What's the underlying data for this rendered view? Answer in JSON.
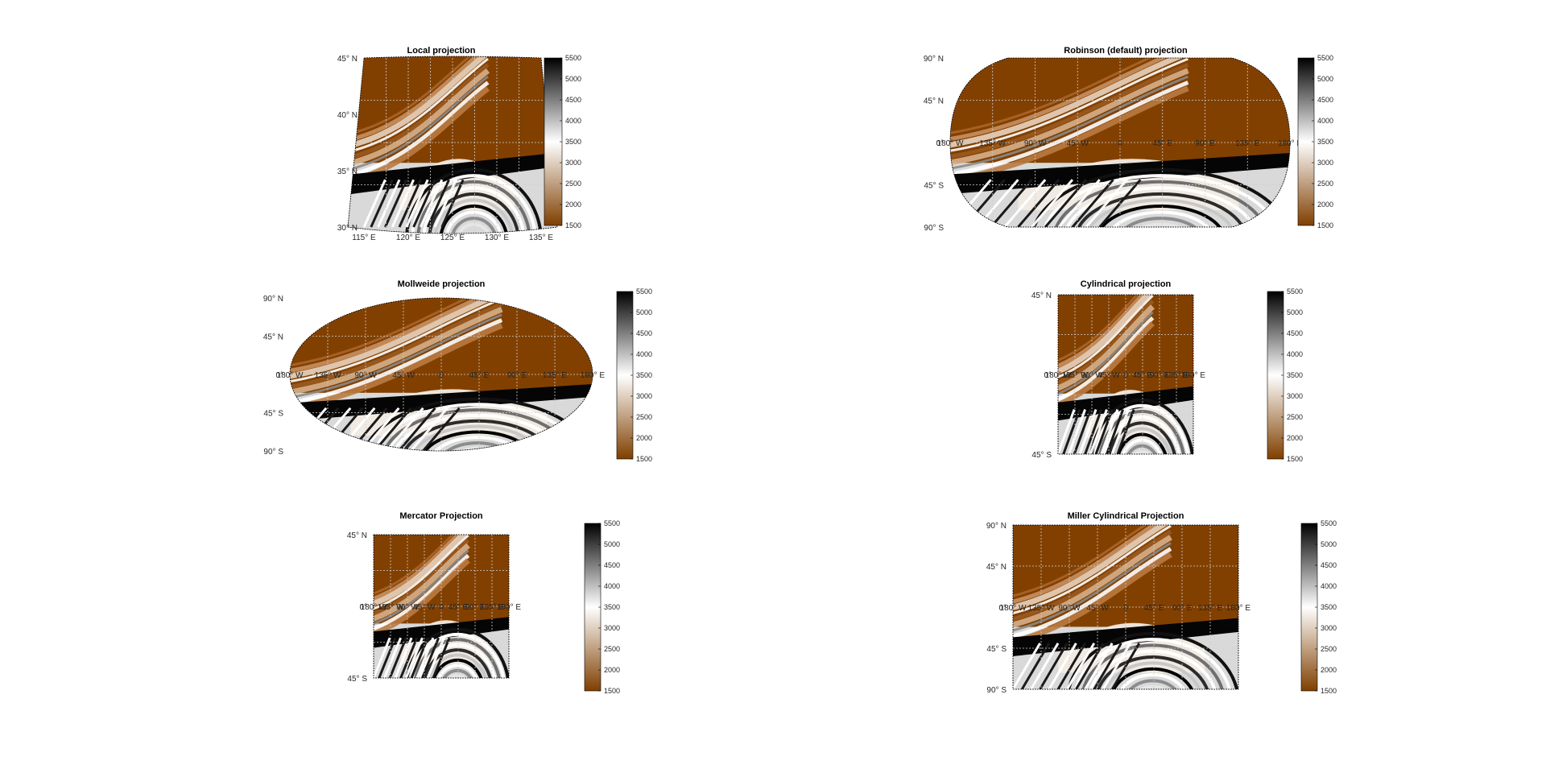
{
  "figure": {
    "background": "#ffffff",
    "colormap": {
      "name": "brown-white-black",
      "stops": [
        "#7f3f00",
        "#ffffff",
        "#000000"
      ]
    }
  },
  "chart_data": [
    {
      "type": "heatmap",
      "title": "Local projection",
      "projection": "local",
      "lon_range": [
        115,
        135
      ],
      "lat_range": [
        30,
        45
      ],
      "lat_labels": [
        "30° N",
        "35° N",
        "40° N",
        "45° N"
      ],
      "lon_labels": [
        "115° E",
        "120° E",
        "125° E",
        "130° E",
        "135° E"
      ],
      "colorbar": {
        "min": 1500,
        "max": 5500,
        "ticks": [
          "1500",
          "2000",
          "2500",
          "3000",
          "3500",
          "4000",
          "4500",
          "5000",
          "5500"
        ]
      },
      "grid": true
    },
    {
      "type": "heatmap",
      "title": "Robinson (default) projection",
      "projection": "robinson",
      "lon_range": [
        -180,
        180
      ],
      "lat_range": [
        -90,
        90
      ],
      "lat_labels": [
        "90° S",
        "45° S",
        "0°",
        "45° N",
        "90° N"
      ],
      "lon_labels": [
        "180° W",
        "135° W",
        "90° W",
        "45° W",
        "0",
        "45° E",
        "90° E",
        "135° E",
        "180° E"
      ],
      "colorbar": {
        "min": 1500,
        "max": 5500,
        "ticks": [
          "1500",
          "2000",
          "2500",
          "3000",
          "3500",
          "4000",
          "4500",
          "5000",
          "5500"
        ]
      },
      "grid": true
    },
    {
      "type": "heatmap",
      "title": "Mollweide projection",
      "projection": "mollweide",
      "lon_range": [
        -180,
        180
      ],
      "lat_range": [
        -90,
        90
      ],
      "lat_labels": [
        "90° S",
        "45° S",
        "0°",
        "45° N",
        "90° N"
      ],
      "lon_labels": [
        "180° W",
        "135° W",
        "90° W",
        "45° W",
        "0",
        "45° E",
        "90° E",
        "135° E",
        "180° E"
      ],
      "colorbar": {
        "min": 1500,
        "max": 5500,
        "ticks": [
          "1500",
          "2000",
          "2500",
          "3000",
          "3500",
          "4000",
          "4500",
          "5000",
          "5500"
        ]
      },
      "grid": true
    },
    {
      "type": "heatmap",
      "title": "Cylindrical projection",
      "projection": "cylindrical",
      "lon_range": [
        -180,
        180
      ],
      "lat_range": [
        -90,
        90
      ],
      "lat_labels": [
        "45° S",
        "0°",
        "45° N"
      ],
      "lon_labels": [
        "180° W",
        "135° W",
        "90° W",
        "45° W",
        "0",
        "45° E",
        "90° E",
        "135° E",
        "180° E"
      ],
      "colorbar": {
        "min": 1500,
        "max": 5500,
        "ticks": [
          "1500",
          "2000",
          "2500",
          "3000",
          "3500",
          "4000",
          "4500",
          "5000",
          "5500"
        ]
      },
      "grid": true
    },
    {
      "type": "heatmap",
      "title": "Mercator Projection",
      "projection": "mercator",
      "lon_range": [
        -180,
        180
      ],
      "lat_range": [
        -80,
        80
      ],
      "lat_labels": [
        "45° S",
        "0°",
        "45° N"
      ],
      "lon_labels": [
        "180° W",
        "135° W",
        "90° W",
        "45° W",
        "0",
        "45° E",
        "90° E",
        "135° E",
        "180° E"
      ],
      "colorbar": {
        "min": 1500,
        "max": 5500,
        "ticks": [
          "1500",
          "2000",
          "2500",
          "3000",
          "3500",
          "4000",
          "4500",
          "5000",
          "5500"
        ]
      },
      "grid": true
    },
    {
      "type": "heatmap",
      "title": "Miller Cylindrical Projection",
      "projection": "miller",
      "lon_range": [
        -180,
        180
      ],
      "lat_range": [
        -90,
        90
      ],
      "lat_labels": [
        "90° S",
        "45° S",
        "0°",
        "45° N",
        "90° N"
      ],
      "lon_labels": [
        "180° W",
        "135° W",
        "90° W",
        "45° W",
        "0",
        "45° E",
        "90° E",
        "135° E",
        "180° E"
      ],
      "colorbar": {
        "min": 1500,
        "max": 5500,
        "ticks": [
          "1500",
          "2000",
          "2500",
          "3000",
          "3500",
          "4000",
          "4500",
          "5000",
          "5500"
        ]
      },
      "grid": true
    }
  ]
}
